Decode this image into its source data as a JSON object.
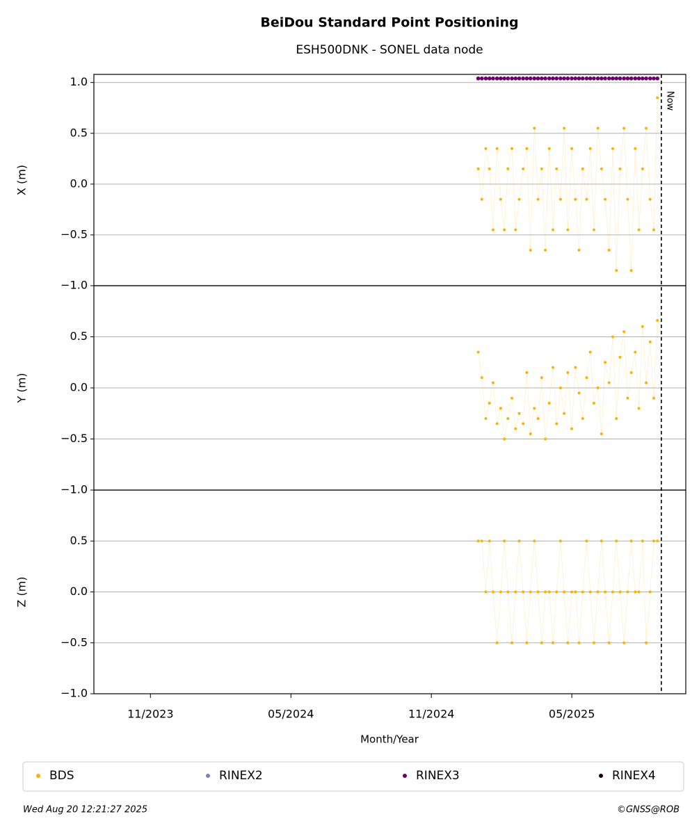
{
  "chart_data": {
    "type": "scatter",
    "title": "BeiDou Standard Point Positioning",
    "subtitle": "ESH500DNK - SONEL data node",
    "xlabel": "Month/Year",
    "xlim": [
      2023.632,
      2025.739
    ],
    "xticks": [
      {
        "value": 2023.8333,
        "label": "11/2023"
      },
      {
        "value": 2024.3333,
        "label": "05/2024"
      },
      {
        "value": 2024.8333,
        "label": "11/2024"
      },
      {
        "value": 2025.3333,
        "label": "05/2025"
      }
    ],
    "now": {
      "value": 2025.652,
      "label": "Now"
    },
    "x": [
      2025.0,
      2025.013,
      2025.027,
      2025.04,
      2025.053,
      2025.067,
      2025.08,
      2025.093,
      2025.106,
      2025.12,
      2025.133,
      2025.146,
      2025.16,
      2025.173,
      2025.186,
      2025.2,
      2025.213,
      2025.226,
      2025.239,
      2025.253,
      2025.266,
      2025.279,
      2025.293,
      2025.306,
      2025.319,
      2025.333,
      2025.346,
      2025.359,
      2025.372,
      2025.386,
      2025.399,
      2025.412,
      2025.426,
      2025.439,
      2025.452,
      2025.466,
      2025.479,
      2025.492,
      2025.505,
      2025.519,
      2025.532,
      2025.545,
      2025.559,
      2025.572,
      2025.585,
      2025.598,
      2025.612,
      2025.625,
      2025.638
    ],
    "panels": [
      {
        "ylabel": "X (m)",
        "ylim": [
          -1,
          1.08
        ],
        "yticks": [
          {
            "value": -1,
            "label": "−1.0"
          },
          {
            "value": -0.5,
            "label": "−0.5"
          },
          {
            "value": 0,
            "label": "0.0"
          },
          0.5,
          {
            "value": 1,
            "label": "1.0"
          }
        ],
        "series": [
          {
            "name": "BDS",
            "color": "#ffb000",
            "values": [
              0.15,
              -0.15,
              0.35,
              0.15,
              -0.45,
              0.35,
              -0.15,
              -0.45,
              0.15,
              0.35,
              -0.45,
              -0.15,
              0.15,
              0.35,
              -0.65,
              0.55,
              -0.15,
              0.15,
              -0.65,
              0.35,
              -0.45,
              0.15,
              -0.15,
              0.55,
              -0.45,
              0.35,
              -0.15,
              -0.65,
              0.15,
              -0.15,
              0.35,
              -0.45,
              0.55,
              0.15,
              -0.15,
              -0.65,
              0.35,
              -0.85,
              0.15,
              0.55,
              -0.15,
              -0.85,
              0.35,
              -0.45,
              0.15,
              0.55,
              -0.15,
              -0.45,
              0.85
            ]
          },
          {
            "name": "RINEX3",
            "color": "#6a006a",
            "values": [
              1.04,
              1.04,
              1.04,
              1.04,
              1.04,
              1.04,
              1.04,
              1.04,
              1.04,
              1.04,
              1.04,
              1.04,
              1.04,
              1.04,
              1.04,
              1.04,
              1.04,
              1.04,
              1.04,
              1.04,
              1.04,
              1.04,
              1.04,
              1.04,
              1.04,
              1.04,
              1.04,
              1.04,
              1.04,
              1.04,
              1.04,
              1.04,
              1.04,
              1.04,
              1.04,
              1.04,
              1.04,
              1.04,
              1.04,
              1.04,
              1.04,
              1.04,
              1.04,
              1.04,
              1.04,
              1.04,
              1.04,
              1.04,
              1.04
            ]
          }
        ]
      },
      {
        "ylabel": "Y (m)",
        "ylim": [
          -1,
          1
        ],
        "yticks": [
          {
            "value": -1,
            "label": "−1.0"
          },
          {
            "value": -0.5,
            "label": "−0.5"
          },
          {
            "value": 0,
            "label": "0.0"
          },
          0.5
        ],
        "series": [
          {
            "name": "BDS",
            "color": "#ffb000",
            "values": [
              0.35,
              0.1,
              -0.3,
              -0.15,
              0.05,
              -0.35,
              -0.2,
              -0.5,
              -0.3,
              -0.1,
              -0.4,
              -0.25,
              -0.35,
              0.15,
              -0.45,
              -0.2,
              -0.3,
              0.1,
              -0.5,
              -0.15,
              0.2,
              -0.35,
              0.0,
              -0.25,
              0.15,
              -0.4,
              0.2,
              -0.05,
              -0.3,
              0.1,
              0.35,
              -0.15,
              0.0,
              -0.45,
              0.25,
              0.05,
              0.5,
              -0.3,
              0.3,
              0.55,
              -0.1,
              0.15,
              0.35,
              -0.2,
              0.6,
              0.05,
              0.45,
              -0.1,
              0.66
            ]
          }
        ]
      },
      {
        "ylabel": "Z (m)",
        "ylim": [
          -1,
          1
        ],
        "yticks": [
          {
            "value": -1,
            "label": "−1.0"
          },
          {
            "value": -0.5,
            "label": "−0.5"
          },
          {
            "value": 0,
            "label": "0.0"
          },
          0.5
        ],
        "series": [
          {
            "name": "BDS",
            "color": "#ffb000",
            "values": [
              0.5,
              0.5,
              0,
              0.5,
              0,
              -0.5,
              0,
              0.5,
              0,
              -0.5,
              0,
              0.5,
              0,
              -0.5,
              0,
              0.5,
              0,
              -0.5,
              0,
              0,
              -0.5,
              0,
              0.5,
              0,
              -0.5,
              0,
              0,
              -0.5,
              0,
              0.5,
              0,
              -0.5,
              0,
              0.5,
              0,
              -0.5,
              0,
              0.5,
              0,
              -0.5,
              0,
              0.5,
              0,
              0,
              0.5,
              -0.5,
              0,
              0.5,
              0.5
            ]
          }
        ]
      }
    ],
    "legend": [
      {
        "name": "BDS",
        "color": "#ffb000"
      },
      {
        "name": "RINEX2",
        "color": "#7f7fc8"
      },
      {
        "name": "RINEX3",
        "color": "#6a006a"
      },
      {
        "name": "RINEX4",
        "color": "#1a0012"
      }
    ],
    "footer_left": "Wed Aug 20 12:21:27 2025",
    "footer_right": "©GNSS@ROB"
  }
}
